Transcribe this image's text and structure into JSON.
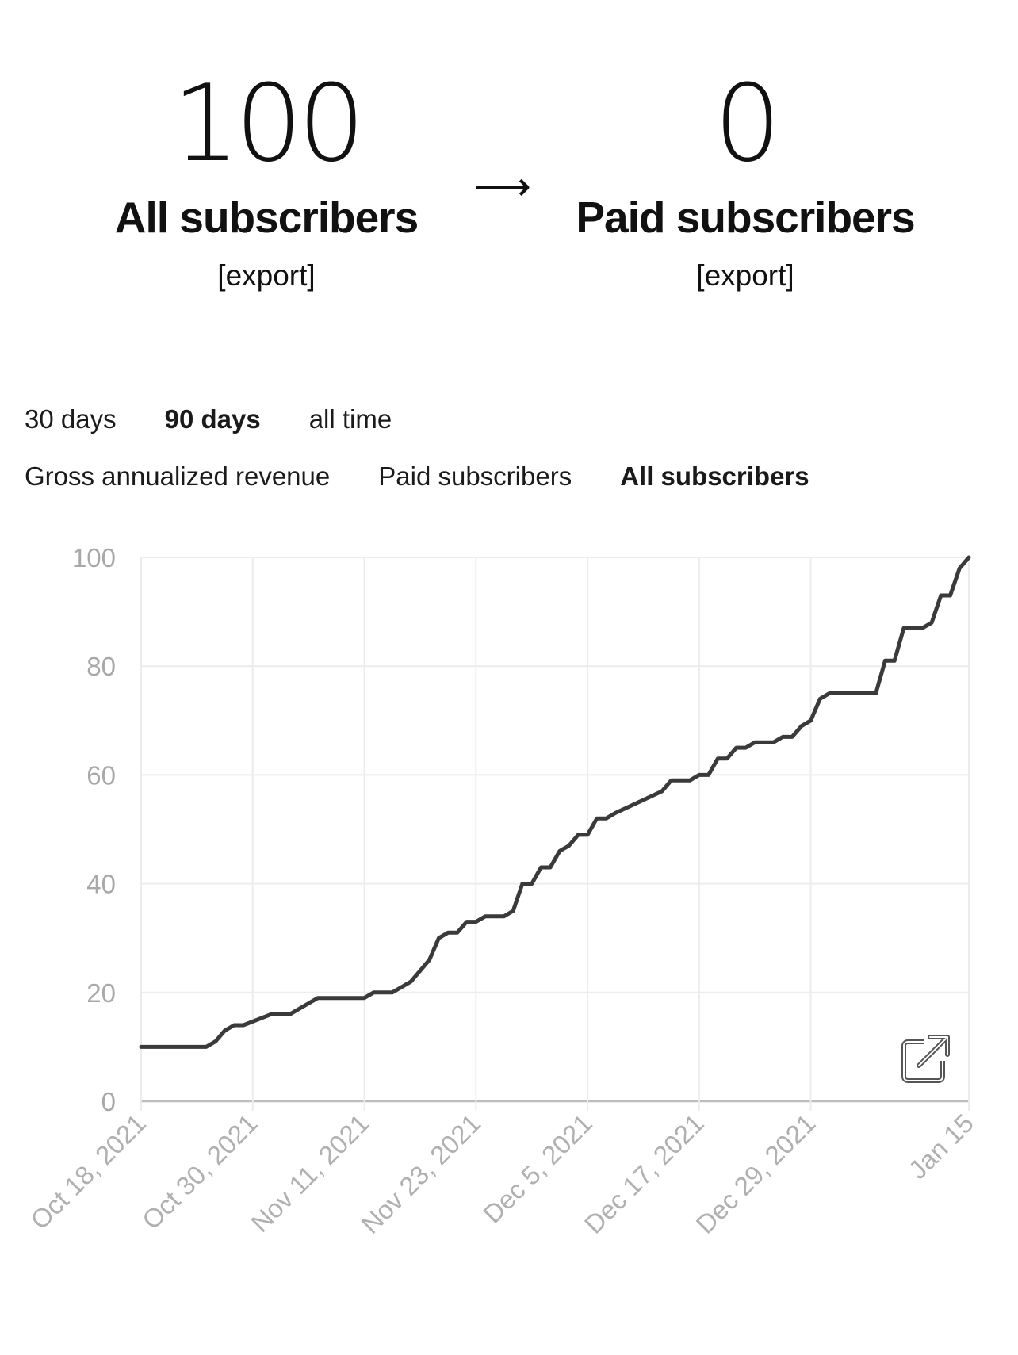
{
  "stats": {
    "all": {
      "number": "100",
      "label": "All subscribers",
      "export": "[export]"
    },
    "arrow": "⟶",
    "paid": {
      "number": "0",
      "label": "Paid subscribers",
      "export": "[export]"
    }
  },
  "range_tabs": [
    {
      "label": "30 days",
      "active": false
    },
    {
      "label": "90 days",
      "active": true
    },
    {
      "label": "all time",
      "active": false
    }
  ],
  "metric_tabs": [
    {
      "label": "Gross annualized revenue",
      "active": false
    },
    {
      "label": "Paid subscribers",
      "active": false
    },
    {
      "label": "All subscribers",
      "active": true
    }
  ],
  "icons": {
    "chart_export": "external-link-icon"
  },
  "chart_data": {
    "type": "line",
    "line_color": "#3a3a3a",
    "grid": true,
    "ylim": [
      0,
      100
    ],
    "yticks": [
      0,
      20,
      40,
      60,
      80,
      100
    ],
    "xlim": [
      "2021-10-18",
      "2022-01-15"
    ],
    "xticks": [
      {
        "date": "2021-10-18",
        "label": "Oct 18, 2021"
      },
      {
        "date": "2021-10-30",
        "label": "Oct 30, 2021"
      },
      {
        "date": "2021-11-11",
        "label": "Nov 11, 2021"
      },
      {
        "date": "2021-11-23",
        "label": "Nov 23, 2021"
      },
      {
        "date": "2021-12-05",
        "label": "Dec 5, 2021"
      },
      {
        "date": "2021-12-17",
        "label": "Dec 17, 2021"
      },
      {
        "date": "2021-12-29",
        "label": "Dec 29, 2021"
      },
      {
        "date": "2022-01-15",
        "label": "Jan 15"
      }
    ],
    "series": [
      {
        "points": [
          [
            "2021-10-18",
            10
          ],
          [
            "2021-10-25",
            10
          ],
          [
            "2021-10-26",
            11
          ],
          [
            "2021-10-27",
            13
          ],
          [
            "2021-10-28",
            14
          ],
          [
            "2021-10-29",
            14
          ],
          [
            "2021-11-01",
            16
          ],
          [
            "2021-11-03",
            16
          ],
          [
            "2021-11-05",
            18
          ],
          [
            "2021-11-06",
            19
          ],
          [
            "2021-11-11",
            19
          ],
          [
            "2021-11-12",
            20
          ],
          [
            "2021-11-14",
            20
          ],
          [
            "2021-11-16",
            22
          ],
          [
            "2021-11-17",
            24
          ],
          [
            "2021-11-18",
            26
          ],
          [
            "2021-11-19",
            30
          ],
          [
            "2021-11-20",
            31
          ],
          [
            "2021-11-21",
            31
          ],
          [
            "2021-11-22",
            33
          ],
          [
            "2021-11-23",
            33
          ],
          [
            "2021-11-24",
            34
          ],
          [
            "2021-11-26",
            34
          ],
          [
            "2021-11-27",
            35
          ],
          [
            "2021-11-28",
            40
          ],
          [
            "2021-11-29",
            40
          ],
          [
            "2021-11-30",
            43
          ],
          [
            "2021-12-01",
            43
          ],
          [
            "2021-12-02",
            46
          ],
          [
            "2021-12-03",
            47
          ],
          [
            "2021-12-04",
            49
          ],
          [
            "2021-12-05",
            49
          ],
          [
            "2021-12-06",
            52
          ],
          [
            "2021-12-07",
            52
          ],
          [
            "2021-12-08",
            53
          ],
          [
            "2021-12-13",
            57
          ],
          [
            "2021-12-14",
            59
          ],
          [
            "2021-12-16",
            59
          ],
          [
            "2021-12-17",
            60
          ],
          [
            "2021-12-18",
            60
          ],
          [
            "2021-12-19",
            63
          ],
          [
            "2021-12-20",
            63
          ],
          [
            "2021-12-21",
            65
          ],
          [
            "2021-12-22",
            65
          ],
          [
            "2021-12-23",
            66
          ],
          [
            "2021-12-25",
            66
          ],
          [
            "2021-12-26",
            67
          ],
          [
            "2021-12-27",
            67
          ],
          [
            "2021-12-28",
            69
          ],
          [
            "2021-12-29",
            70
          ],
          [
            "2021-12-30",
            74
          ],
          [
            "2021-12-31",
            75
          ],
          [
            "2022-01-05",
            75
          ],
          [
            "2022-01-06",
            81
          ],
          [
            "2022-01-07",
            81
          ],
          [
            "2022-01-08",
            87
          ],
          [
            "2022-01-10",
            87
          ],
          [
            "2022-01-11",
            88
          ],
          [
            "2022-01-12",
            93
          ],
          [
            "2022-01-13",
            93
          ],
          [
            "2022-01-14",
            98
          ],
          [
            "2022-01-15",
            100
          ]
        ]
      }
    ]
  }
}
